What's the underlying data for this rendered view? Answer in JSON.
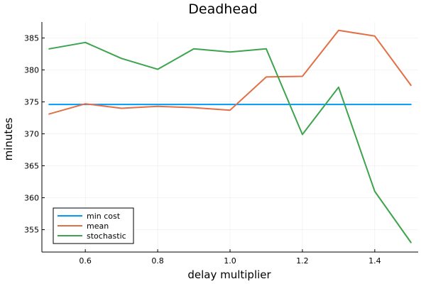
{
  "chart_data": {
    "type": "line",
    "title": "Deadhead",
    "xlabel": "delay multiplier",
    "ylabel": "minutes",
    "xlim": [
      0.48,
      1.52
    ],
    "ylim": [
      351.5,
      387.5
    ],
    "xticks": [
      0.6,
      0.8,
      1.0,
      1.2,
      1.4
    ],
    "xtick_labels": [
      "0.6",
      "0.8",
      "1.0",
      "1.2",
      "1.4"
    ],
    "yticks": [
      355,
      360,
      365,
      370,
      375,
      380,
      385
    ],
    "ytick_labels": [
      "355",
      "360",
      "365",
      "370",
      "375",
      "380",
      "385"
    ],
    "grid": true,
    "legend_position": "bottom-left",
    "x": [
      0.5,
      0.6,
      0.7,
      0.8,
      0.9,
      1.0,
      1.1,
      1.2,
      1.3,
      1.4,
      1.5
    ],
    "series": [
      {
        "name": "min cost",
        "color": "#009af9",
        "values": [
          374.6,
          374.6,
          374.6,
          374.6,
          374.6,
          374.6,
          374.6,
          374.6,
          374.6,
          374.6,
          374.6
        ]
      },
      {
        "name": "mean",
        "color": "#e26f46",
        "values": [
          373.1,
          374.7,
          374.0,
          374.3,
          374.1,
          373.7,
          378.9,
          379.0,
          386.2,
          385.3,
          377.6
        ]
      },
      {
        "name": "stochastic",
        "color": "#3da44d",
        "values": [
          383.3,
          384.3,
          381.8,
          380.1,
          383.3,
          382.8,
          383.3,
          369.9,
          377.3,
          361.0,
          353.0
        ]
      }
    ]
  }
}
